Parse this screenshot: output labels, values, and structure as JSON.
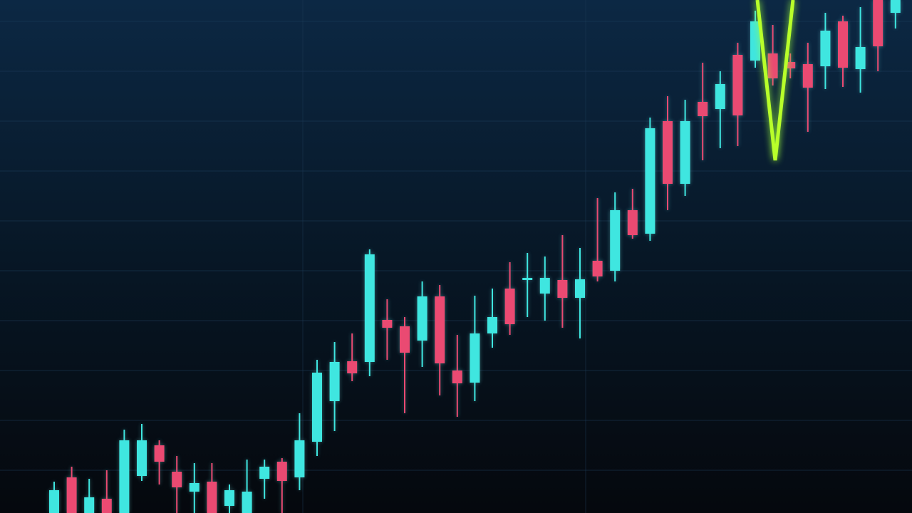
{
  "chart_data": {
    "type": "candlestick",
    "open": [
      0,
      50,
      0,
      20,
      0,
      52,
      95,
      58,
      30,
      44,
      10,
      0,
      48,
      72,
      50,
      100,
      157,
      213,
      212,
      271,
      262,
      242,
      304,
      200,
      183,
      252,
      315,
      327,
      308,
      327,
      302,
      354,
      340,
      425,
      392,
      550,
      462,
      577,
      567,
      643,
      635,
      645,
      633,
      630,
      627,
      690,
      623,
      720,
      702
    ],
    "high": [
      44,
      65,
      48,
      60,
      117,
      125,
      102,
      80,
      70,
      70,
      40,
      75,
      75,
      77,
      140,
      215,
      240,
      252,
      370,
      300,
      275,
      325,
      320,
      250,
      305,
      315,
      352,
      365,
      360,
      390,
      372,
      442,
      450,
      455,
      555,
      585,
      580,
      632,
      620,
      660,
      705,
      685,
      645,
      660,
      702,
      698,
      710,
      720,
      720
    ],
    "low": [
      0,
      0,
      0,
      0,
      0,
      45,
      40,
      0,
      0,
      0,
      0,
      0,
      20,
      0,
      32,
      80,
      115,
      185,
      192,
      215,
      140,
      205,
      165,
      135,
      157,
      232,
      250,
      275,
      270,
      260,
      245,
      325,
      325,
      385,
      382,
      425,
      445,
      495,
      512,
      515,
      625,
      600,
      610,
      535,
      595,
      598,
      590,
      620,
      680
    ],
    "close": [
      32,
      0,
      22,
      0,
      102,
      102,
      72,
      36,
      42,
      0,
      32,
      30,
      65,
      45,
      102,
      197,
      212,
      196,
      363,
      260,
      225,
      304,
      210,
      182,
      252,
      275,
      265,
      330,
      330,
      302,
      328,
      332,
      425,
      390,
      540,
      462,
      550,
      557,
      602,
      558,
      690,
      610,
      624,
      597,
      677,
      625,
      654,
      655,
      720
    ],
    "up_color": "#3fe6e0",
    "down_color": "#ea4a72",
    "ylim": [
      0,
      720
    ],
    "yticks": [
      60,
      130,
      200,
      270,
      340,
      410,
      480,
      550,
      620,
      690
    ],
    "grid": true
  }
}
